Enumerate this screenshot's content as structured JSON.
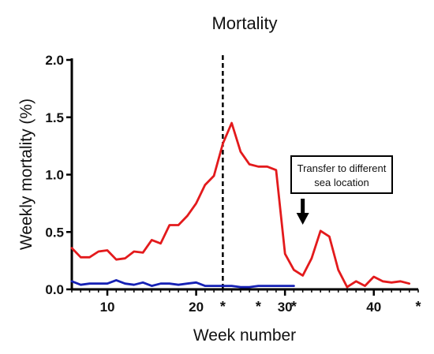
{
  "chart_data": {
    "type": "line",
    "title": "Mortality",
    "xlabel": "Week number",
    "ylabel": "Weekly mortality (%)",
    "xlim": [
      6,
      45
    ],
    "ylim": [
      0,
      2
    ],
    "x_ticks": [
      10,
      20,
      30,
      40
    ],
    "y_ticks": [
      "0.0",
      "0.5",
      "1.0",
      "1.5",
      "2.0"
    ],
    "star_weeks": [
      23,
      27,
      31,
      45
    ],
    "star_symbol": "*",
    "vertical_line_x": 23,
    "annotation": {
      "text_line1": "Transfer to different",
      "text_line2": "sea location",
      "arrow_x": 32
    },
    "grid": false,
    "legend": "none",
    "series": [
      {
        "color": "#e31a1c",
        "points": [
          [
            6,
            0.36
          ],
          [
            7,
            0.28
          ],
          [
            8,
            0.28
          ],
          [
            9,
            0.33
          ],
          [
            10,
            0.34
          ],
          [
            11,
            0.26
          ],
          [
            12,
            0.27
          ],
          [
            13,
            0.33
          ],
          [
            14,
            0.32
          ],
          [
            15,
            0.43
          ],
          [
            16,
            0.4
          ],
          [
            17,
            0.56
          ],
          [
            18,
            0.56
          ],
          [
            19,
            0.64
          ],
          [
            20,
            0.75
          ],
          [
            21,
            0.91
          ],
          [
            22,
            0.99
          ],
          [
            23,
            1.27
          ],
          [
            24,
            1.45
          ],
          [
            25,
            1.2
          ],
          [
            26,
            1.09
          ],
          [
            27,
            1.07
          ],
          [
            28,
            1.07
          ],
          [
            29,
            1.04
          ],
          [
            30,
            0.31
          ],
          [
            31,
            0.17
          ],
          [
            32,
            0.12
          ],
          [
            33,
            0.27
          ],
          [
            34,
            0.51
          ],
          [
            35,
            0.46
          ],
          [
            36,
            0.17
          ],
          [
            37,
            0.02
          ],
          [
            38,
            0.07
          ],
          [
            39,
            0.03
          ],
          [
            40,
            0.11
          ],
          [
            41,
            0.07
          ],
          [
            42,
            0.06
          ],
          [
            43,
            0.07
          ],
          [
            44,
            0.05
          ]
        ]
      },
      {
        "color": "#1520b4",
        "points": [
          [
            6,
            0.07
          ],
          [
            7,
            0.04
          ],
          [
            8,
            0.05
          ],
          [
            9,
            0.05
          ],
          [
            10,
            0.05
          ],
          [
            11,
            0.08
          ],
          [
            12,
            0.05
          ],
          [
            13,
            0.04
          ],
          [
            14,
            0.06
          ],
          [
            15,
            0.03
          ],
          [
            16,
            0.05
          ],
          [
            17,
            0.05
          ],
          [
            18,
            0.04
          ],
          [
            19,
            0.05
          ],
          [
            20,
            0.06
          ],
          [
            21,
            0.03
          ],
          [
            22,
            0.03
          ],
          [
            23,
            0.03
          ],
          [
            24,
            0.03
          ],
          [
            25,
            0.02
          ],
          [
            26,
            0.02
          ],
          [
            27,
            0.03
          ],
          [
            28,
            0.03
          ],
          [
            29,
            0.03
          ],
          [
            30,
            0.03
          ],
          [
            31,
            0.03
          ]
        ]
      }
    ]
  }
}
